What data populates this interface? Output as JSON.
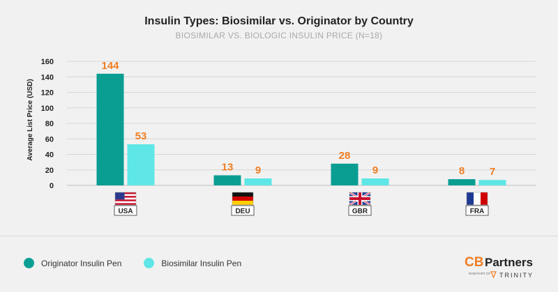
{
  "header": {
    "title": "Insulin Types: Biosimilar vs. Originator by Country",
    "subtitle": "BIOSIMILAR VS. BIOLOGIC INSULIN PRICE (N=18)"
  },
  "chart_data": {
    "type": "bar",
    "title": "Insulin Types: Biosimilar vs. Originator by Country",
    "subtitle": "BIOSIMILAR VS. BIOLOGIC INSULIN PRICE (N=18)",
    "categories": [
      "USA",
      "DEU",
      "GBR",
      "FRA"
    ],
    "series": [
      {
        "name": "Originator Insulin Pen",
        "values": [
          144,
          13,
          28,
          8
        ],
        "color": "#0a9e93"
      },
      {
        "name": "Biosimilar Insulin Pen",
        "values": [
          53,
          9,
          9,
          7
        ],
        "color": "#5fe6e6"
      }
    ],
    "xlabel": "",
    "ylabel": "Average List Price (USD)",
    "ylim": [
      0,
      160
    ],
    "yticks": [
      0,
      20,
      40,
      60,
      80,
      100,
      120,
      140,
      160
    ],
    "grid": true,
    "legend_position": "bottom-left",
    "data_label_color": "#f07d22"
  },
  "legend": {
    "items": [
      {
        "label": "Originator Insulin Pen",
        "color": "#0a9e93"
      },
      {
        "label": "Biosimilar Insulin Pen",
        "color": "#5fe6e6"
      }
    ]
  },
  "logo": {
    "brand_main": "CB",
    "brand_word": "Partners",
    "tagline": "NOW PART OF",
    "parent": "TRINITY"
  }
}
